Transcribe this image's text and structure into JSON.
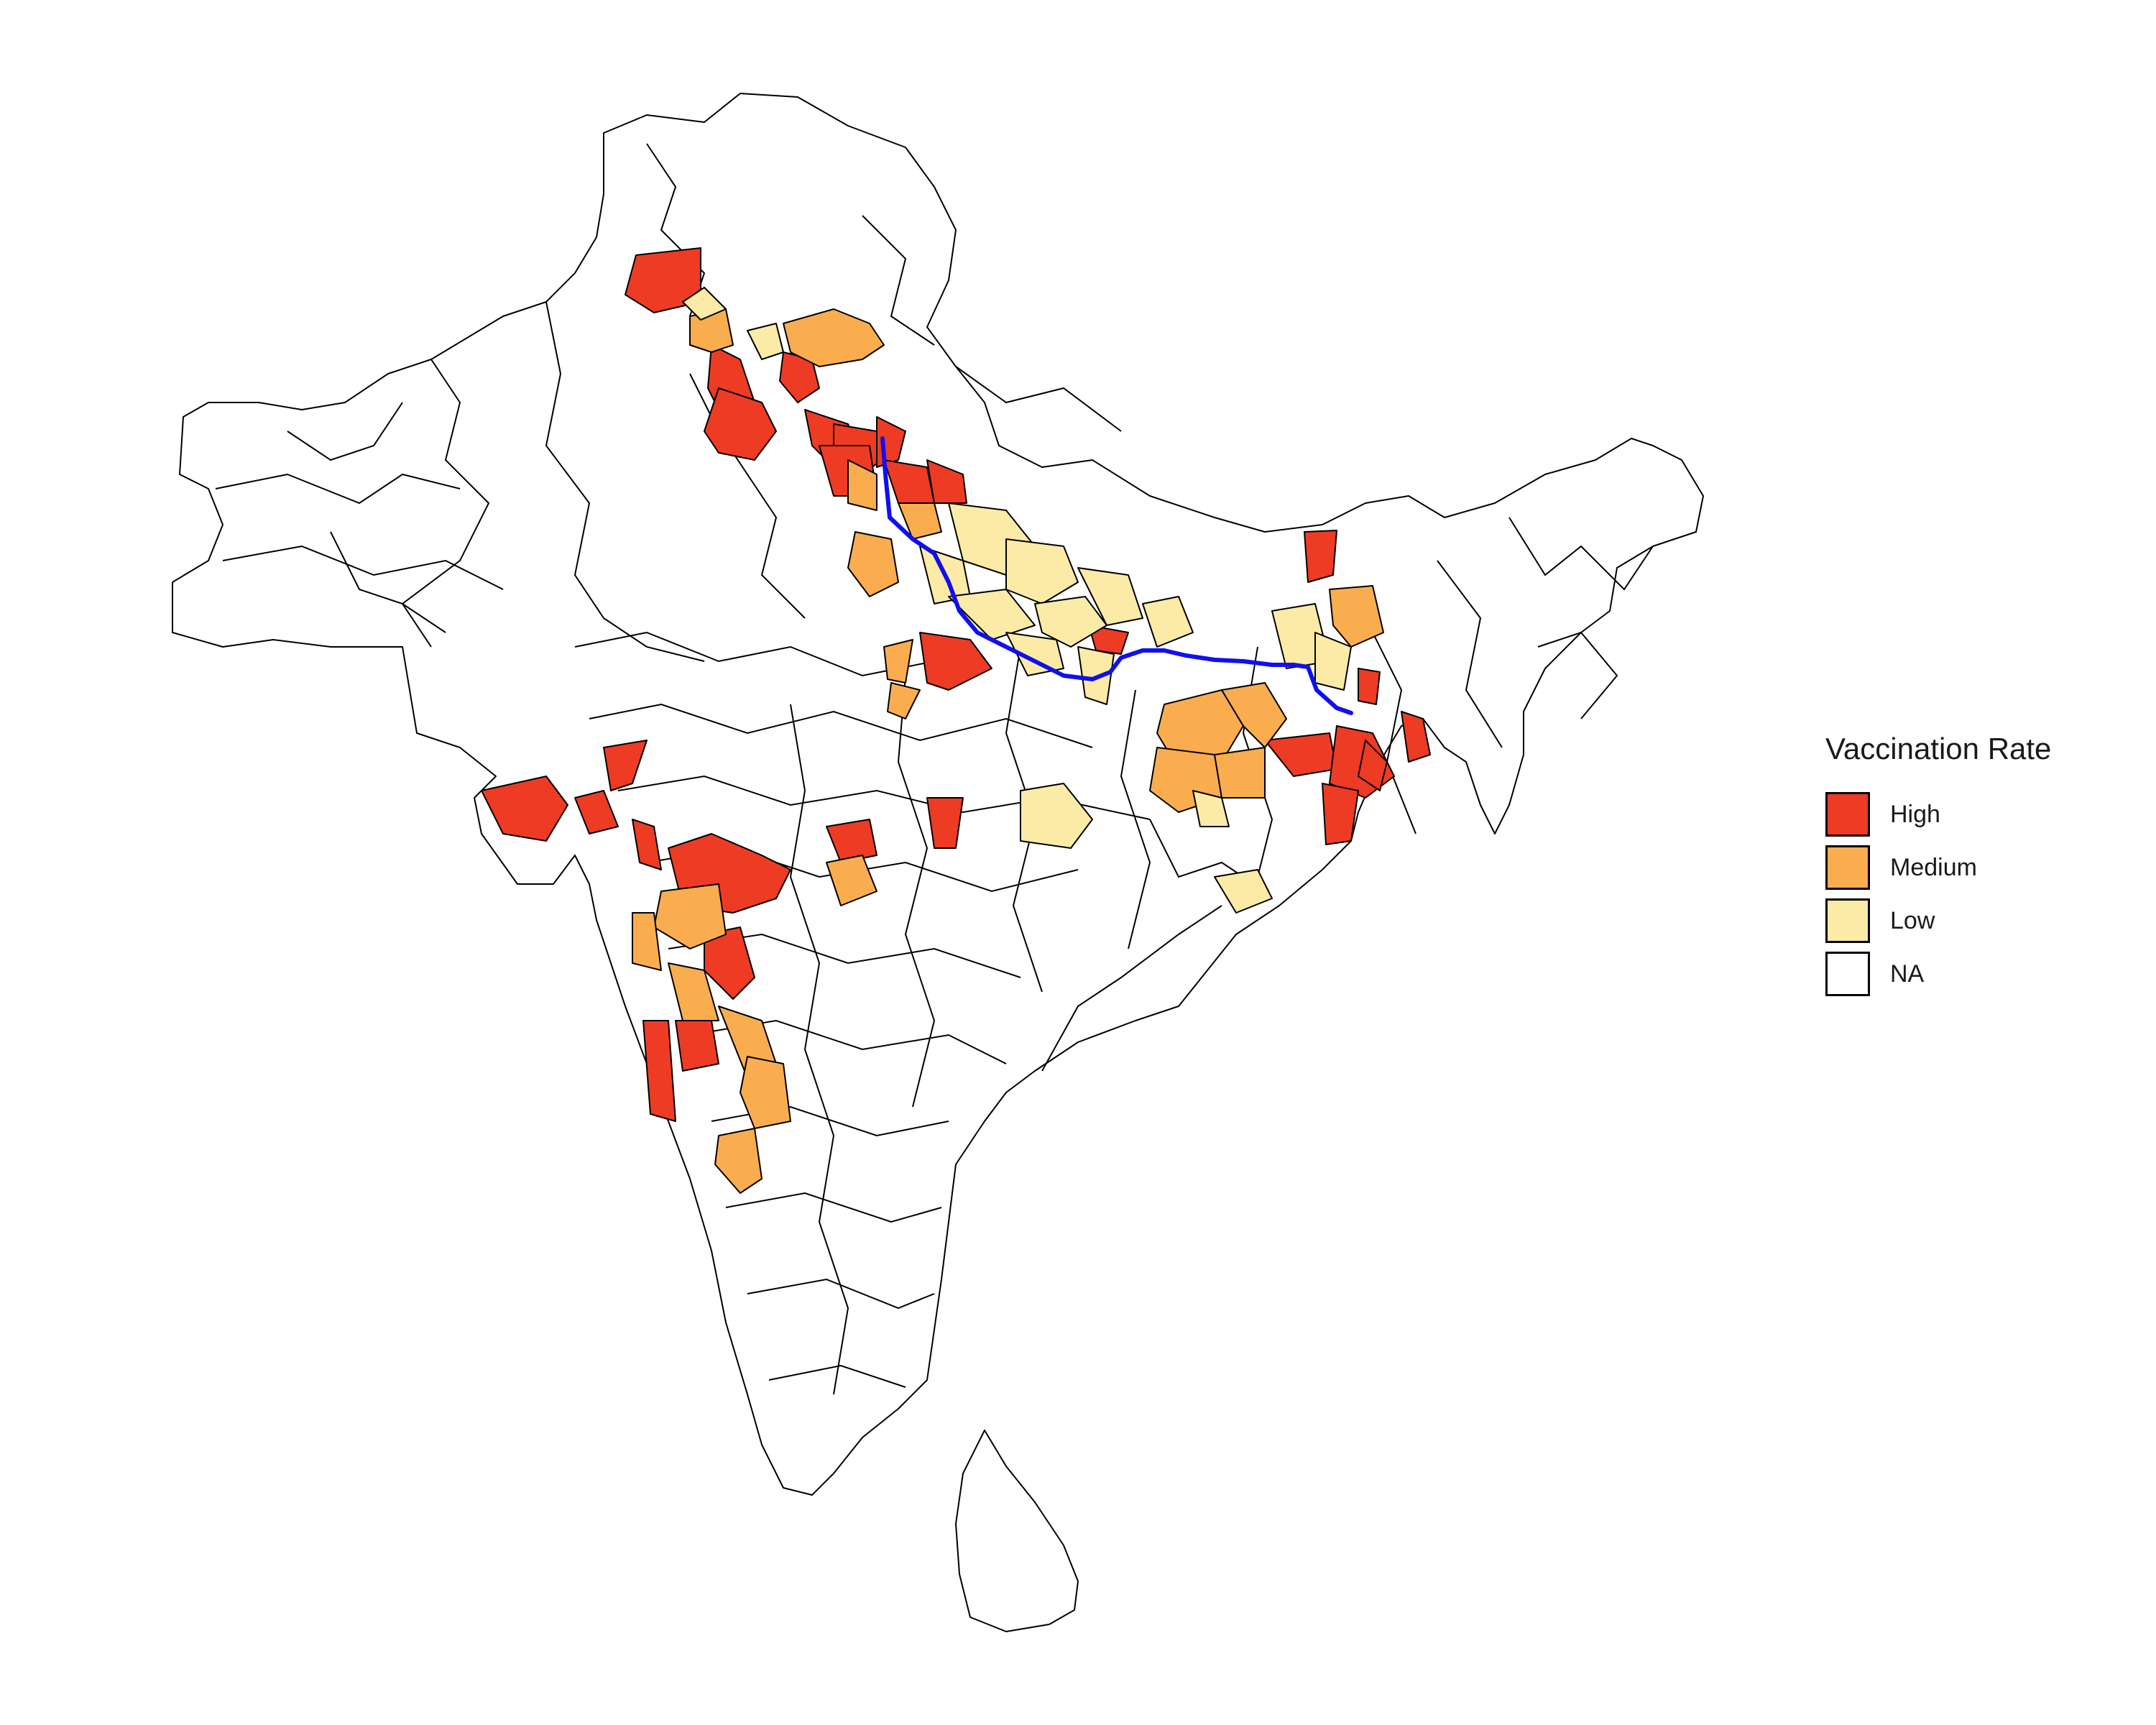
{
  "legend": {
    "title": "Vaccination Rate",
    "items": [
      {
        "label": "High",
        "color": "#ee3b24"
      },
      {
        "label": "Medium",
        "color": "#f9ad4e"
      },
      {
        "label": "Low",
        "color": "#fbeba6"
      },
      {
        "label": "NA",
        "color": "#ffffff"
      }
    ]
  },
  "map": {
    "region": "South Asia district map",
    "river": "Ganges river line",
    "colors": {
      "high": "#ee3b24",
      "medium": "#f9ad4e",
      "low": "#fbeba6",
      "na": "#ffffff",
      "border": "#000000",
      "river": "#1010ee"
    }
  }
}
